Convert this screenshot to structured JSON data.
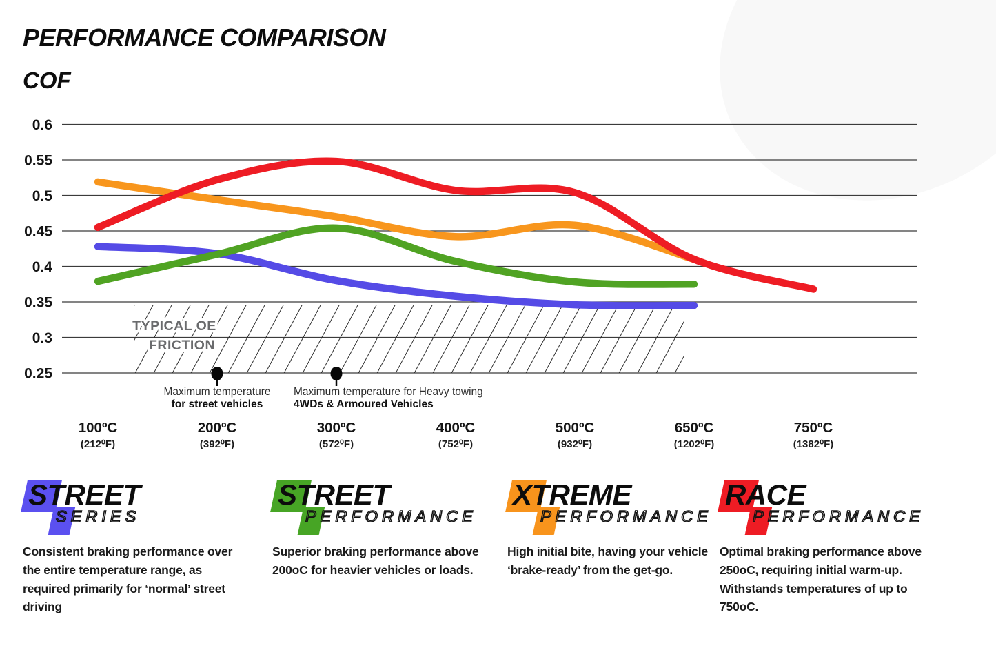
{
  "header": {
    "title": "PERFORMANCE COMPARISON",
    "axis_label": "COF"
  },
  "chart_data": {
    "type": "line",
    "title": "PERFORMANCE COMPARISON",
    "ylabel": "COF",
    "ylim": [
      0.25,
      0.6
    ],
    "grid": true,
    "yticks": [
      0.6,
      0.55,
      0.5,
      0.45,
      0.4,
      0.35,
      0.3,
      0.25
    ],
    "x_ticks": [
      {
        "c": "100ºC",
        "f": "(212⁰F)"
      },
      {
        "c": "200ºC",
        "f": "(392⁰F)"
      },
      {
        "c": "300ºC",
        "f": "(572⁰F)"
      },
      {
        "c": "400ºC",
        "f": "(752⁰F)"
      },
      {
        "c": "500ºC",
        "f": "(932⁰F)"
      },
      {
        "c": "650ºC",
        "f": "(1202⁰F)"
      },
      {
        "c": "750ºC",
        "f": "(1382⁰F)"
      }
    ],
    "categories_c": [
      100,
      200,
      300,
      400,
      500,
      650,
      750
    ],
    "series": [
      {
        "name": "Street Series",
        "color": "#554be6",
        "values": [
          0.428,
          0.418,
          0.38,
          0.358,
          0.346,
          0.345,
          null
        ]
      },
      {
        "name": "Street Performance",
        "color": "#50a323",
        "values": [
          0.379,
          0.417,
          0.454,
          0.407,
          0.378,
          0.375,
          null
        ]
      },
      {
        "name": "Xtreme Performance",
        "color": "#f8961d",
        "values": [
          0.519,
          0.494,
          0.47,
          0.442,
          0.458,
          0.41,
          null
        ]
      },
      {
        "name": "Race Performance",
        "color": "#ee1c24",
        "values": [
          0.455,
          0.522,
          0.548,
          0.507,
          0.504,
          0.41,
          0.368
        ]
      }
    ],
    "oe_band": {
      "line1": "TYPICAL OE",
      "line2": "FRICTION",
      "y_range": [
        0.25,
        0.35
      ]
    },
    "annotations": [
      {
        "line1": "Maximum temperature",
        "line2": "for street vehicles",
        "x_index": 1,
        "align": "middle"
      },
      {
        "line1": "Maximum temperature for Heavy towing",
        "line2": "4WDs & Armoured Vehicles",
        "x_index": 2,
        "align": "start"
      }
    ]
  },
  "legend": {
    "items": [
      {
        "word1": "STREET",
        "word2": "SERIES",
        "color": "#5b50f0",
        "description": "Consistent braking performance over the entire temperature range, as required primarily for ‘normal’ street driving"
      },
      {
        "word1": "STREET",
        "word2": "PERFORMANCE",
        "color": "#47a525",
        "description": "Superior braking performance above 200oC for heavier vehicles or loads."
      },
      {
        "word1": "XTREME",
        "word2": "PERFORMANCE",
        "color": "#f8941c",
        "description": "High initial bite, having your vehicle ‘brake-ready’ from the get-go."
      },
      {
        "word1": "RACE",
        "word2": "PERFORMANCE",
        "color": "#ee1c24",
        "description": "Optimal braking performance above 250oC, requiring initial warm-up. Withstands temperatures of up to 750oC."
      }
    ]
  }
}
